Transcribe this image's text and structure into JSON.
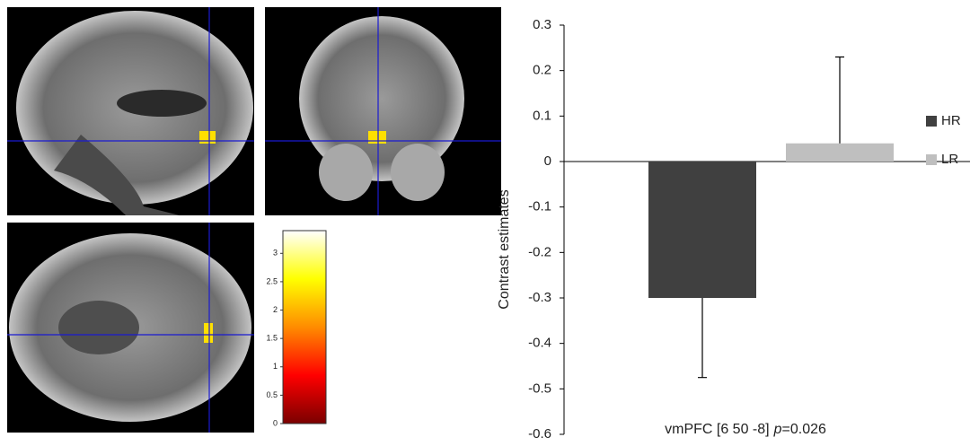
{
  "chart_data": [
    {
      "type": "colorbar",
      "colormap": [
        "#7a0000",
        "#ff0000",
        "#ff8c00",
        "#ffff00",
        "#ffffff"
      ],
      "ylim": [
        0,
        3.4
      ],
      "yticks": [
        0,
        0.5,
        1,
        1.5,
        2,
        2.5,
        3
      ]
    },
    {
      "type": "bar",
      "ylabel": "Contrast estimates",
      "xlabel": [
        "vmPFC [6 50 -8]",
        "p",
        "=0.026"
      ],
      "series": [
        {
          "name": "HR",
          "color": "#404040",
          "values": [
            -0.3
          ],
          "errors": [
            0.175
          ]
        },
        {
          "name": "LR",
          "color": "#bfbfbf",
          "values": [
            0.04
          ],
          "errors": [
            0.19
          ]
        }
      ],
      "ylim": [
        -0.6,
        0.3
      ],
      "yticks": [
        -0.6,
        -0.5,
        -0.4,
        -0.3,
        -0.2,
        -0.1,
        0,
        0.1,
        0.2,
        0.3
      ]
    }
  ]
}
